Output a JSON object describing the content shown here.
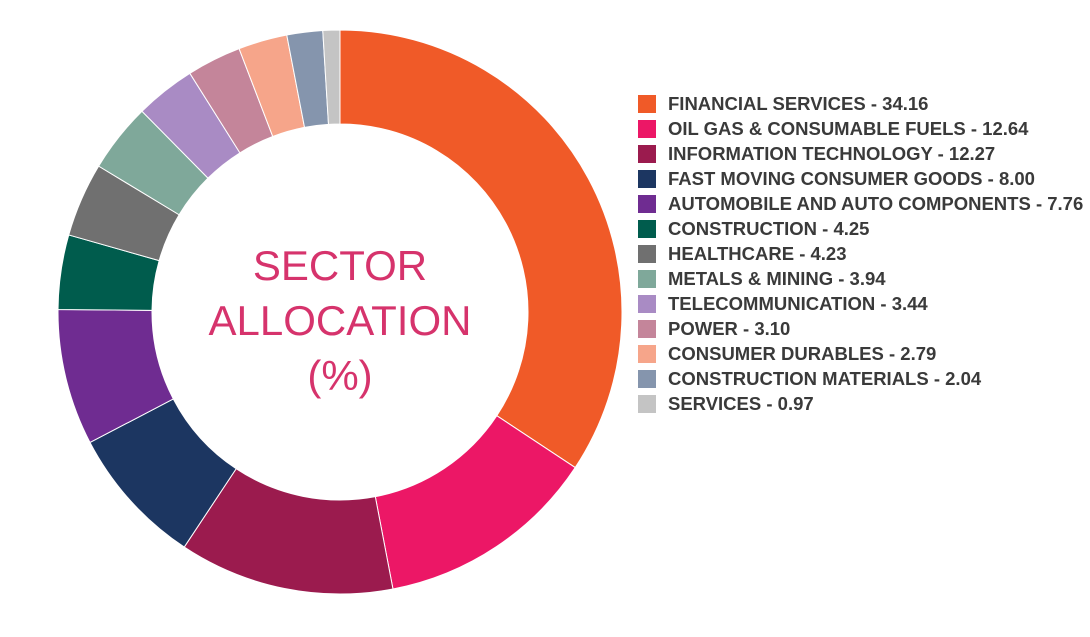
{
  "chart_data": {
    "type": "donut",
    "title": "SECTOR ALLOCATION (%)",
    "categories": [
      "FINANCIAL SERVICES - 34.16",
      "OIL GAS & CONSUMABLE FUELS - 12.64",
      "INFORMATION TECHNOLOGY - 12.27",
      "FAST MOVING CONSUMER GOODS - 8.00",
      "AUTOMOBILE AND AUTO COMPONENTS - 7.76",
      "CONSTRUCTION - 4.25",
      "HEALTHCARE - 4.23",
      "METALS & MINING - 3.94",
      "TELECOMMUNICATION - 3.44",
      "POWER - 3.10",
      "CONSUMER DURABLES - 2.79",
      "CONSTRUCTION MATERIALS - 2.04",
      "SERVICES - 0.97"
    ],
    "values": [
      34.16,
      12.64,
      12.27,
      8.0,
      7.76,
      4.25,
      4.23,
      3.94,
      3.44,
      3.1,
      2.79,
      2.04,
      0.97
    ],
    "colors": [
      "#f05a28",
      "#ec1766",
      "#9b1b4e",
      "#1c3661",
      "#6f2c91",
      "#005c4d",
      "#707070",
      "#7fa89a",
      "#a98bc4",
      "#c4859a",
      "#f6a58a",
      "#8595ad",
      "#c4c4c4"
    ]
  }
}
